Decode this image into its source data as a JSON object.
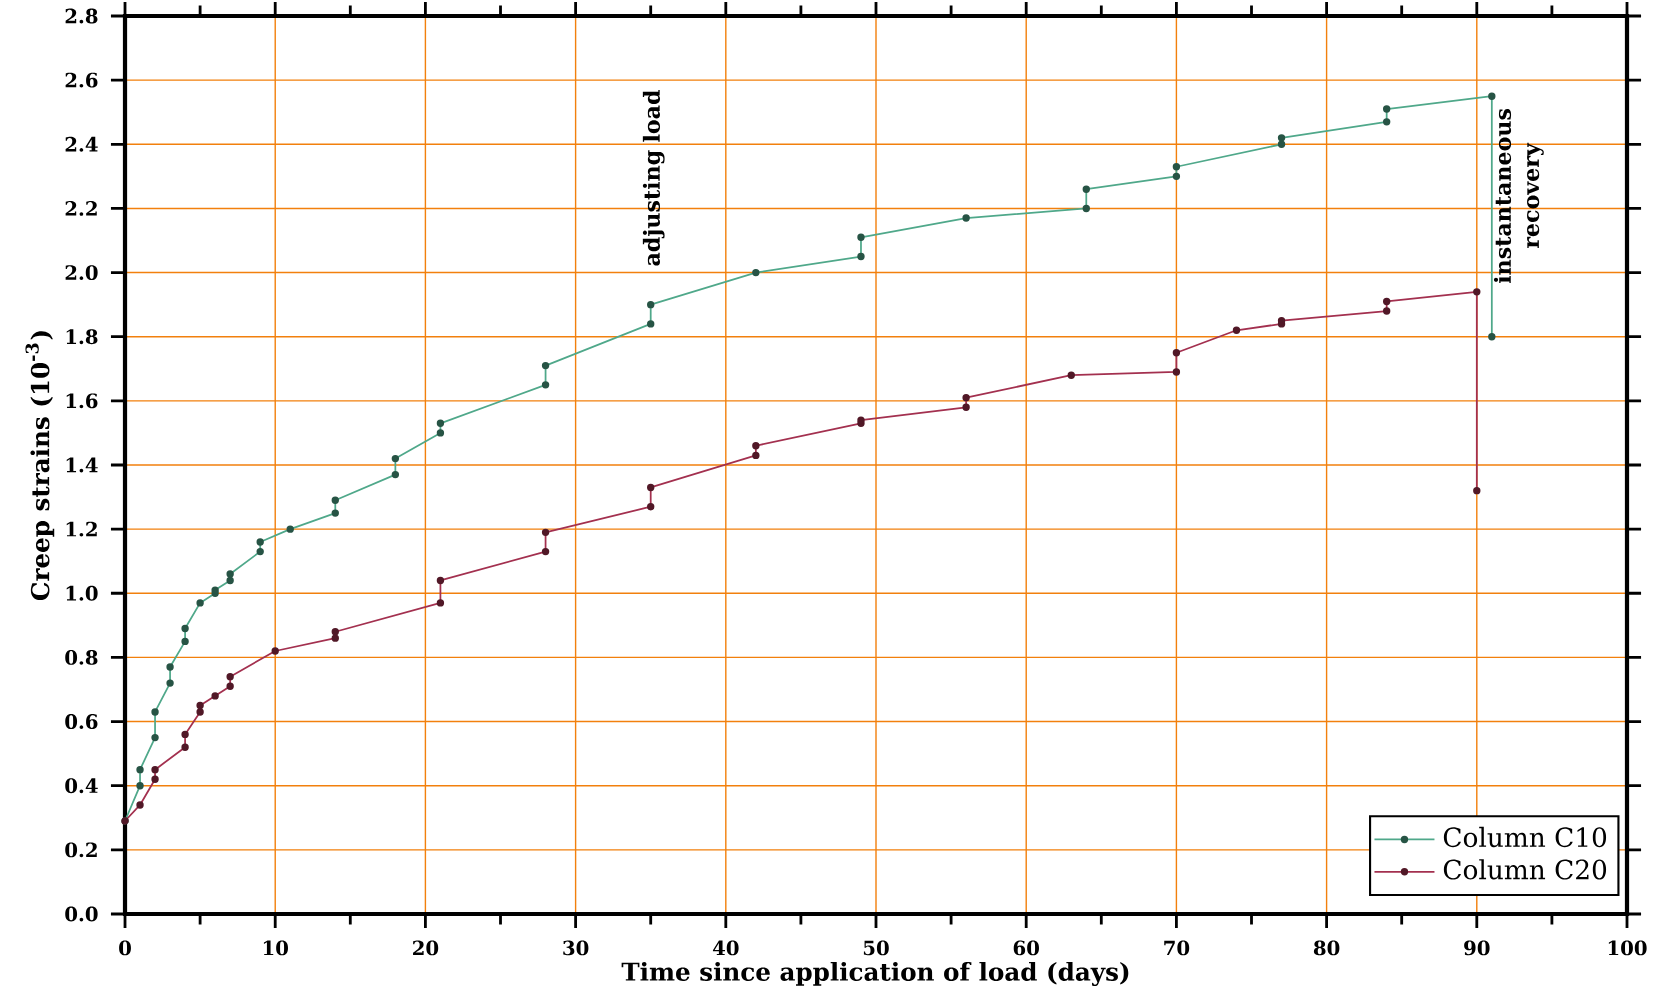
{
  "chart_data": {
    "type": "line",
    "xlabel": "Time since application of load (days)",
    "ylabel": "Creep strains (10$^{-3}$)",
    "xlim": [
      0,
      100
    ],
    "ylim": [
      0,
      2.8
    ],
    "xticks": [
      0,
      {
        "value": 5,
        "label": null
      },
      10,
      {
        "value": 15,
        "label": null
      },
      20,
      {
        "value": 25,
        "label": null
      },
      30,
      {
        "value": 35,
        "label": null
      },
      40,
      {
        "value": 45,
        "label": null
      },
      50,
      {
        "value": 55,
        "label": null
      },
      60,
      {
        "value": 65,
        "label": null
      },
      70,
      {
        "value": 75,
        "label": null
      },
      80,
      {
        "value": 85,
        "label": null
      },
      90,
      {
        "value": 95,
        "label": null
      },
      100
    ],
    "yticks": [
      {
        "value": 0,
        "label": "0.0"
      },
      0.2,
      0.4,
      0.6,
      0.8,
      {
        "value": 1,
        "label": "1.0"
      },
      1.2,
      1.4,
      1.6,
      1.8,
      {
        "value": 2,
        "label": "2.0"
      },
      2.2,
      2.4,
      2.6,
      2.8
    ],
    "grid": true,
    "legend": "bottom right",
    "marker": "circle",
    "line_style": "solid",
    "series": [
      {
        "name": "Column C10",
        "color": "#4fa88a",
        "x": [
          0,
          1,
          1,
          2,
          2,
          3,
          3,
          4,
          4,
          5,
          6,
          6,
          7,
          7,
          9,
          9,
          11,
          14,
          14,
          18,
          18,
          21,
          21,
          28,
          28,
          35,
          35,
          42,
          49,
          49,
          56,
          64,
          64,
          70,
          70,
          77,
          77,
          84,
          84,
          91,
          91
        ],
        "values": [
          0.29,
          0.4,
          0.45,
          0.55,
          0.63,
          0.72,
          0.77,
          0.85,
          0.89,
          0.97,
          1.0,
          1.01,
          1.04,
          1.06,
          1.13,
          1.16,
          1.2,
          1.25,
          1.29,
          1.37,
          1.42,
          1.5,
          1.53,
          1.65,
          1.71,
          1.84,
          1.9,
          2.0,
          2.05,
          2.11,
          2.17,
          2.2,
          2.26,
          2.3,
          2.33,
          2.4,
          2.42,
          2.47,
          2.51,
          2.55,
          1.8
        ]
      },
      {
        "name": "Column C20",
        "color": "#a3304f",
        "x": [
          0,
          1,
          2,
          2,
          4,
          4,
          5,
          5,
          6,
          7,
          7,
          10,
          14,
          14,
          21,
          21,
          28,
          28,
          35,
          35,
          42,
          42,
          49,
          49,
          56,
          56,
          63,
          70,
          70,
          74,
          77,
          77,
          84,
          84,
          90,
          90
        ],
        "values": [
          0.29,
          0.34,
          0.42,
          0.45,
          0.52,
          0.56,
          0.63,
          0.65,
          0.68,
          0.71,
          0.74,
          0.82,
          0.86,
          0.88,
          0.97,
          1.04,
          1.13,
          1.19,
          1.27,
          1.33,
          1.43,
          1.46,
          1.53,
          1.54,
          1.58,
          1.61,
          1.68,
          1.69,
          1.75,
          1.82,
          1.84,
          1.85,
          1.88,
          1.91,
          1.94,
          1.32
        ]
      }
    ],
    "annotations": [
      "adjusting load",
      "instantaneous recovery"
    ]
  }
}
